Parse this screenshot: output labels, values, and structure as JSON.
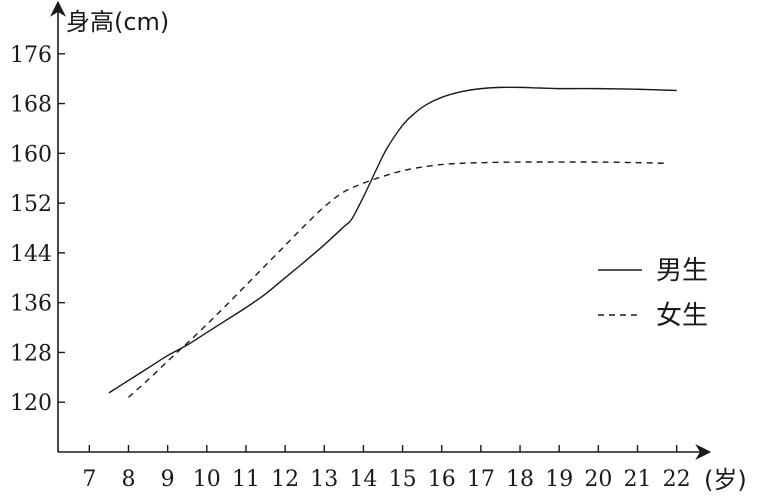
{
  "chart_data": {
    "type": "line",
    "ylabel": "身高(cm)",
    "xlabel": "(岁)",
    "x_ticks": [
      7,
      8,
      9,
      10,
      11,
      12,
      13,
      14,
      15,
      16,
      17,
      18,
      19,
      20,
      21,
      22
    ],
    "y_ticks": [
      120,
      128,
      136,
      144,
      152,
      160,
      168,
      176
    ],
    "xlim": [
      6.2,
      22.8
    ],
    "ylim": [
      112,
      184
    ],
    "grid": false,
    "legend": "right",
    "series": [
      {
        "name": "男生",
        "style": "solid",
        "x": [
          7.5,
          8,
          8.5,
          9,
          9.5,
          10,
          10.5,
          11,
          11.5,
          12,
          12.5,
          13,
          13.5,
          13.7,
          14,
          14.3,
          14.6,
          15,
          15.3,
          15.6,
          16,
          16.5,
          17,
          17.5,
          18,
          18.5,
          19,
          20,
          21,
          22
        ],
        "values": [
          121.5,
          123.5,
          125.5,
          127.5,
          129.2,
          131.2,
          133.2,
          135.2,
          137.4,
          140,
          142.6,
          145.3,
          148.2,
          149.4,
          153,
          157,
          160.8,
          164.5,
          166.4,
          167.8,
          169,
          169.9,
          170.4,
          170.6,
          170.6,
          170.5,
          170.4,
          170.4,
          170.3,
          170.1
        ]
      },
      {
        "name": "女生",
        "style": "dashed",
        "x": [
          8,
          8.5,
          9,
          9.5,
          10,
          10.5,
          11,
          11.5,
          12,
          12.5,
          13,
          13.5,
          14,
          14.5,
          15,
          15.5,
          16,
          16.5,
          17,
          18,
          19,
          20,
          21,
          21.7
        ],
        "values": [
          120.8,
          123.6,
          126.6,
          129.5,
          132.5,
          135.6,
          138.8,
          142,
          145.2,
          148.4,
          151.4,
          153.8,
          155.2,
          156.3,
          157.2,
          157.8,
          158.2,
          158.4,
          158.5,
          158.6,
          158.6,
          158.6,
          158.5,
          158.4
        ]
      }
    ]
  }
}
